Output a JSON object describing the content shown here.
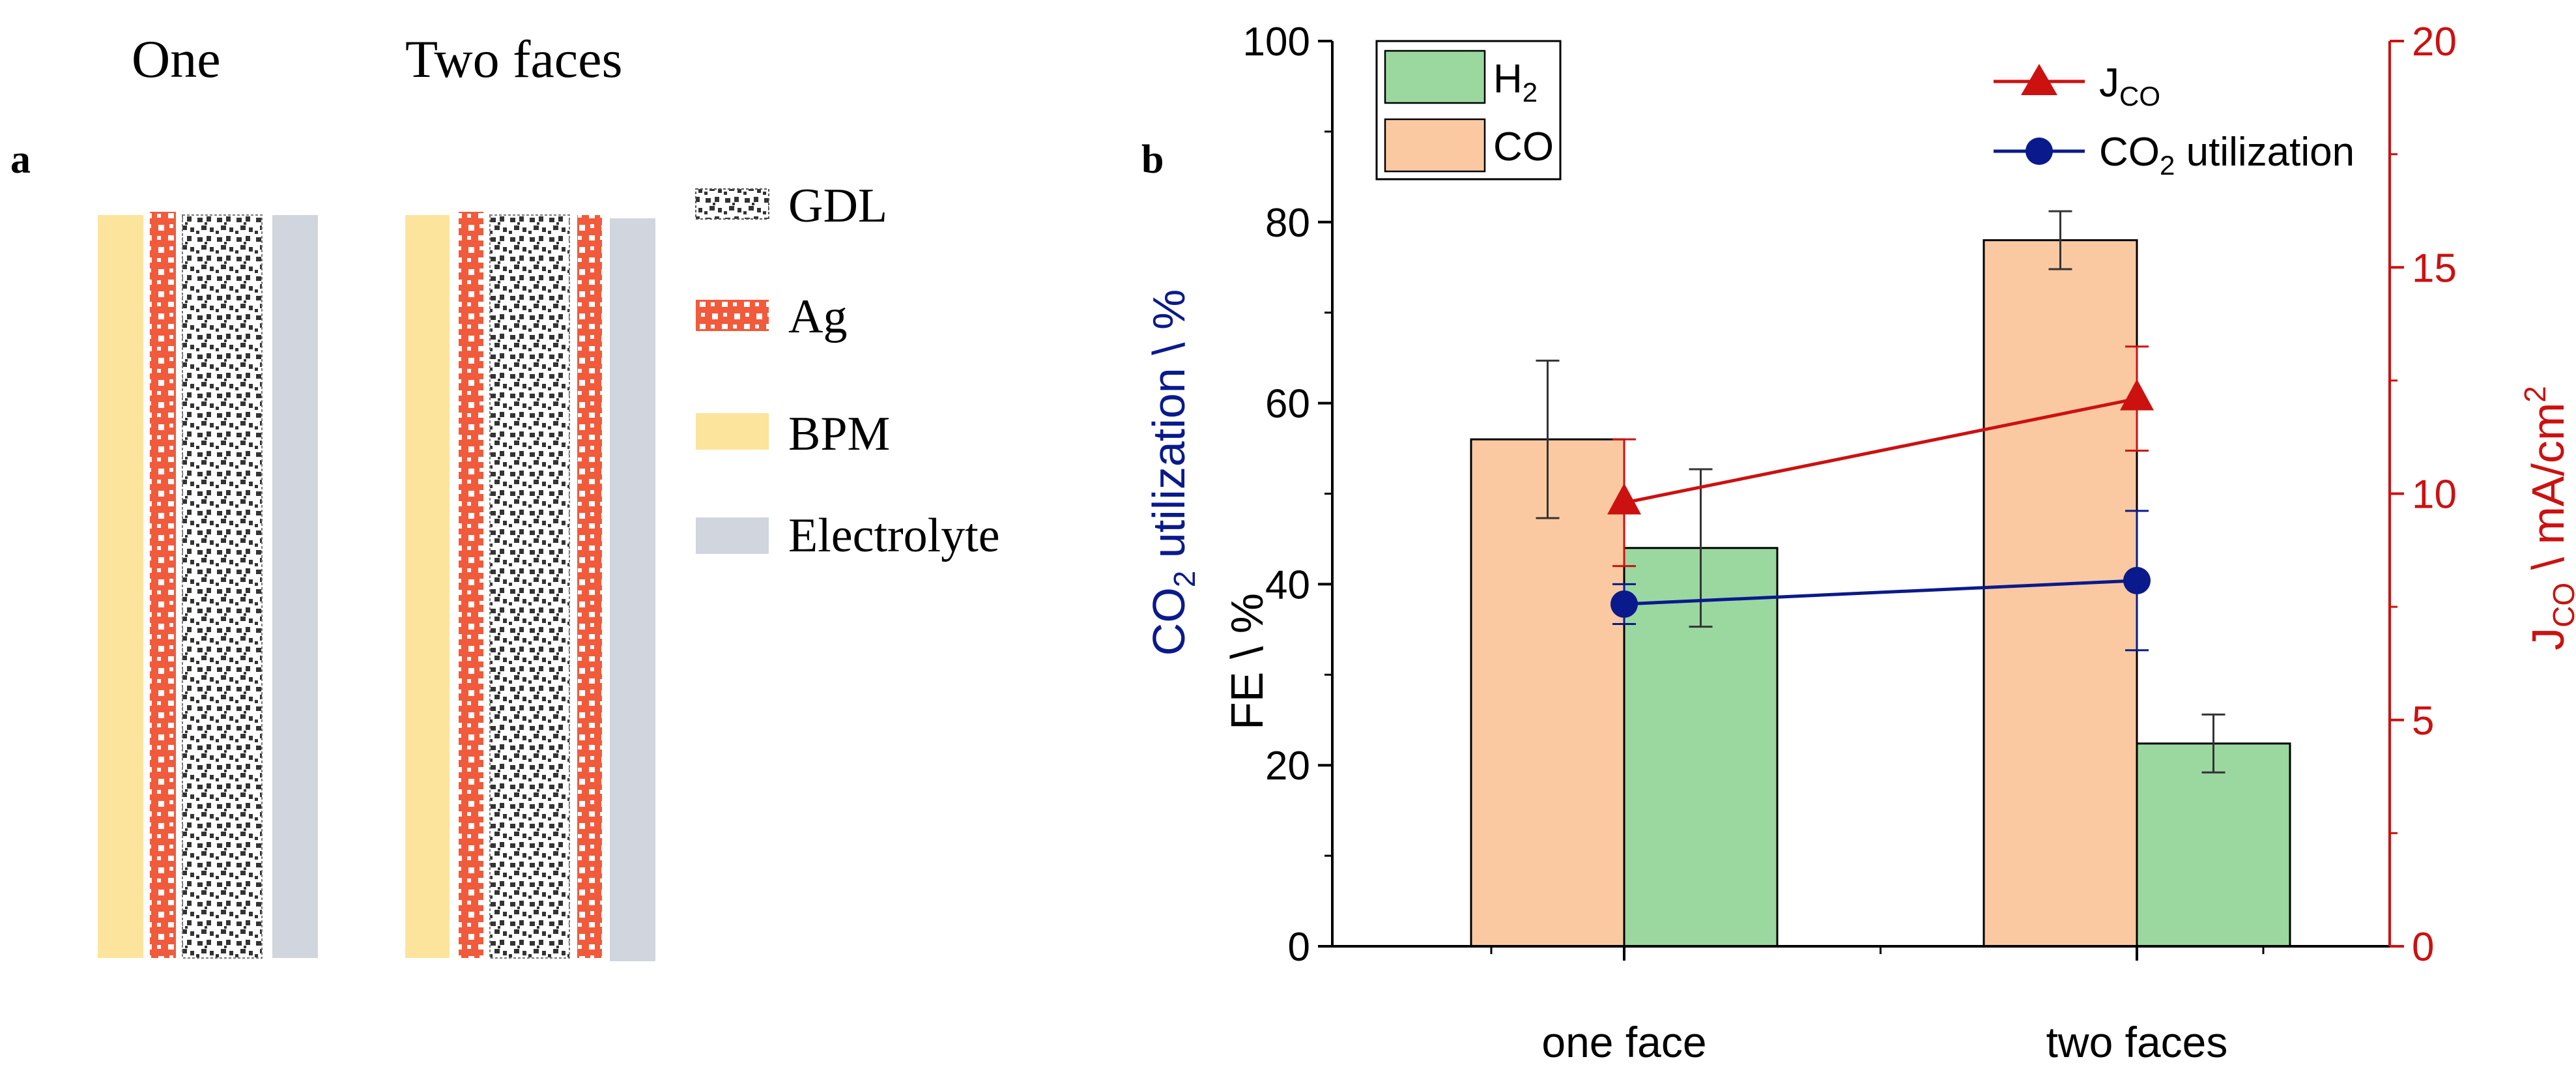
{
  "panel_a": {
    "panel_label": "a",
    "col_titles": [
      "One",
      "Two faces"
    ],
    "legend": [
      {
        "key": "gdl",
        "label": "GDL"
      },
      {
        "key": "ag",
        "label": "Ag"
      },
      {
        "key": "bpm",
        "label": "BPM"
      },
      {
        "key": "electrolyte",
        "label": "Electrolyte"
      }
    ],
    "colors": {
      "bpm": "#fde49c",
      "ag": "#f15a3b",
      "gdl_bg": "#ffffff",
      "gdl_dot": "#333333",
      "electrolyte": "#d0d5de"
    }
  },
  "chart_data": {
    "type": "bar",
    "panel_label": "b",
    "categories": [
      "one face",
      "two faces"
    ],
    "series": [
      {
        "name": "CO",
        "axis": "left",
        "values": [
          56,
          78
        ],
        "errors": [
          8.7,
          3.2
        ],
        "color": "#fbc9a1"
      },
      {
        "name": "H2",
        "axis": "left",
        "values": [
          44,
          22.4
        ],
        "errors": [
          8.7,
          3.2
        ],
        "color": "#9ad89f"
      },
      {
        "name": "CO2 utilization",
        "axis": "left",
        "type": "line",
        "marker": "circle",
        "values": [
          37.8,
          40.4
        ],
        "errors": [
          2.2,
          7.7
        ],
        "color": "#0a1a8c"
      },
      {
        "name": "JCO",
        "axis": "right",
        "type": "line",
        "marker": "triangle",
        "values": [
          9.8,
          12.1
        ],
        "errors": [
          1.4,
          1.15
        ],
        "color": "#cc1111"
      }
    ],
    "legend": {
      "bars": [
        {
          "main": "H",
          "sub": "2",
          "tail": ""
        },
        {
          "main": "CO",
          "sub": "",
          "tail": ""
        }
      ],
      "lines": [
        {
          "main": "J",
          "sub": "CO",
          "tail": ""
        },
        {
          "main": "CO",
          "sub": "2",
          "tail": " utilization"
        }
      ]
    },
    "left_axis": {
      "label_util": {
        "main": "CO",
        "sub": "2",
        "tail": " utilization \\ %"
      },
      "label_fe": "FE \\ %",
      "ylim": [
        0,
        100
      ],
      "ticks": [
        "0",
        "20",
        "40",
        "60",
        "80",
        "100"
      ]
    },
    "right_axis": {
      "label": {
        "main": "J",
        "sub": "CO",
        "tail": " \\ mA/cm",
        "sup": "2"
      },
      "ylim": [
        0,
        20
      ],
      "ticks": [
        "0",
        "5",
        "10",
        "15",
        "20"
      ]
    },
    "colors": {
      "right_axis": "#cc1111",
      "util_label": "#0a1a8c"
    }
  }
}
